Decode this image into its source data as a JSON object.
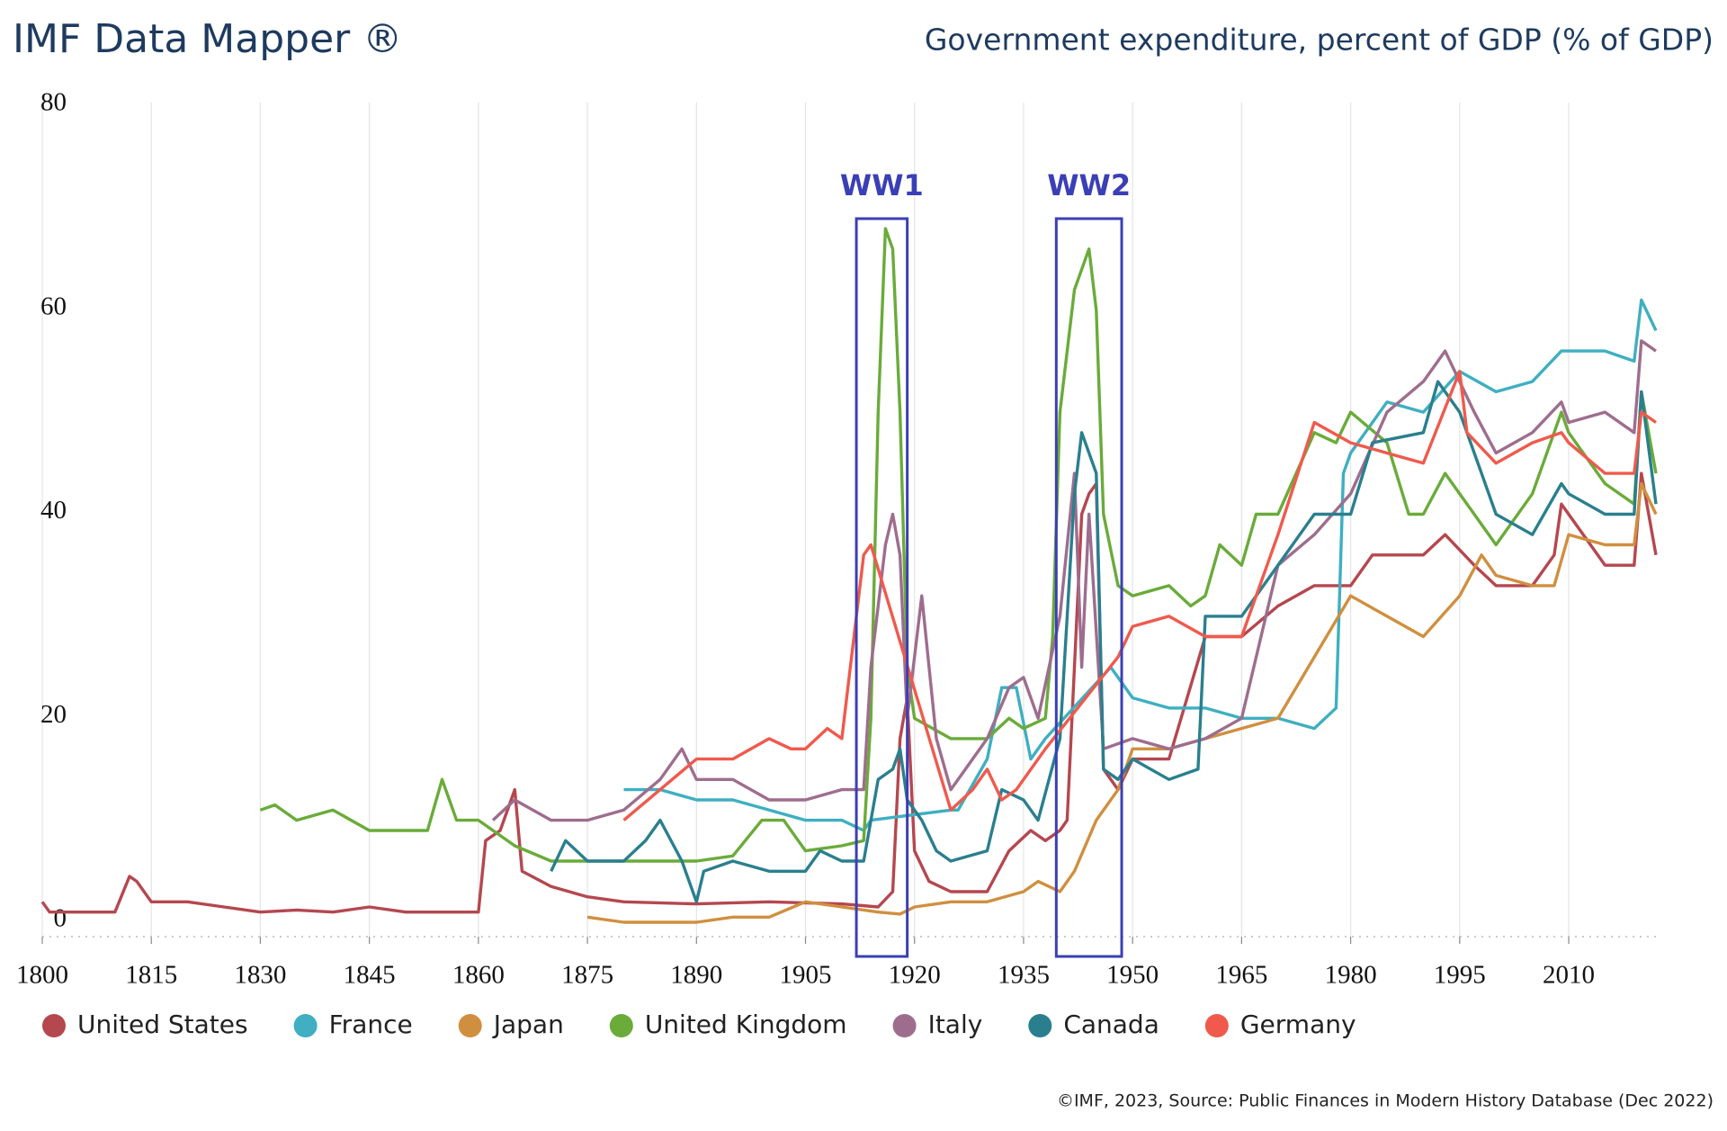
{
  "chart_data": {
    "type": "line",
    "title": "IMF Data Mapper ®",
    "subtitle": "Government expenditure, percent of GDP (% of GDP)",
    "source": "©IMF, 2023, Source: Public Finances in Modern History Database (Dec 2022)",
    "xlim": [
      1800,
      2022
    ],
    "xticks": [
      1800,
      1815,
      1830,
      1845,
      1860,
      1875,
      1890,
      1905,
      1920,
      1935,
      1950,
      1965,
      1980,
      1995,
      2010
    ],
    "ylim": [
      0,
      80
    ],
    "yticks": [
      0,
      20,
      40,
      60,
      80
    ],
    "grid": true,
    "legend": "bottom",
    "annotations": [
      {
        "text": "WW1",
        "x_range": [
          1912,
          1919
        ]
      },
      {
        "text": "WW2",
        "x_range": [
          1939.5,
          1948.5
        ]
      }
    ],
    "series": [
      {
        "name": "United States",
        "color": "#b5474f",
        "x": [
          1800,
          1801,
          1805,
          1810,
          1812,
          1813,
          1815,
          1820,
          1825,
          1830,
          1835,
          1840,
          1845,
          1850,
          1855,
          1860,
          1861,
          1863,
          1865,
          1866,
          1870,
          1875,
          1880,
          1890,
          1900,
          1910,
          1915,
          1917,
          1918,
          1919,
          1920,
          1922,
          1925,
          1930,
          1933,
          1936,
          1938,
          1940,
          1941,
          1942,
          1943,
          1944,
          1945,
          1946,
          1948,
          1950,
          1955,
          1960,
          1965,
          1970,
          1975,
          1980,
          1983,
          1990,
          1993,
          1997,
          2000,
          2005,
          2008,
          2009,
          2012,
          2015,
          2019,
          2020,
          2021,
          2022
        ],
        "values": [
          2,
          1,
          1,
          1,
          4.5,
          4,
          2,
          2,
          1.5,
          1,
          1.2,
          1,
          1.5,
          1,
          1,
          1,
          8,
          9,
          13,
          5,
          3.5,
          2.5,
          2,
          1.8,
          2,
          1.8,
          1.5,
          3,
          18,
          22,
          7,
          4,
          3,
          3,
          7,
          9,
          8,
          9,
          10,
          25,
          40,
          42,
          43,
          15,
          13,
          16,
          16,
          28,
          28,
          31,
          33,
          33,
          36,
          36,
          38,
          35,
          33,
          33,
          36,
          41,
          38,
          35,
          35,
          44,
          40,
          36
        ]
      },
      {
        "name": "France",
        "color": "#3fafc1",
        "x": [
          1880,
          1885,
          1890,
          1895,
          1900,
          1905,
          1910,
          1913,
          1914,
          1925,
          1926,
          1930,
          1932,
          1934,
          1936,
          1938,
          1947,
          1950,
          1955,
          1960,
          1965,
          1970,
          1975,
          1978,
          1979,
          1980,
          1985,
          1990,
          1995,
          2000,
          2005,
          2009,
          2010,
          2015,
          2019,
          2020,
          2022
        ],
        "values": [
          13,
          13,
          12,
          12,
          11,
          10,
          10,
          9,
          10,
          11,
          11,
          16,
          23,
          23,
          16,
          18,
          25,
          22,
          21,
          21,
          20,
          20,
          19,
          21,
          44,
          46,
          51,
          50,
          54,
          52,
          53,
          56,
          56,
          56,
          55,
          61,
          58
        ]
      },
      {
        "name": "Japan",
        "color": "#d08f3f",
        "x": [
          1875,
          1880,
          1890,
          1895,
          1900,
          1905,
          1910,
          1915,
          1918,
          1920,
          1925,
          1930,
          1935,
          1937,
          1940,
          1942,
          1945,
          1948,
          1950,
          1955,
          1960,
          1965,
          1970,
          1975,
          1980,
          1985,
          1990,
          1995,
          1998,
          2000,
          2005,
          2008,
          2010,
          2015,
          2019,
          2020,
          2022
        ],
        "values": [
          0.5,
          0,
          0,
          0.5,
          0.5,
          2,
          1.5,
          1,
          0.8,
          1.5,
          2,
          2,
          3,
          4,
          3,
          5,
          10,
          13,
          17,
          17,
          18,
          19,
          20,
          26,
          32,
          30,
          28,
          32,
          36,
          34,
          33,
          33,
          38,
          37,
          37,
          43,
          40
        ]
      },
      {
        "name": "United Kingdom",
        "color": "#6aab3a",
        "x": [
          1830,
          1832,
          1835,
          1840,
          1845,
          1850,
          1853,
          1855,
          1857,
          1860,
          1865,
          1870,
          1875,
          1880,
          1885,
          1890,
          1895,
          1899,
          1902,
          1905,
          1910,
          1913,
          1914,
          1915,
          1916,
          1917,
          1918,
          1919,
          1920,
          1925,
          1930,
          1933,
          1935,
          1938,
          1939,
          1940,
          1942,
          1944,
          1945,
          1946,
          1948,
          1950,
          1955,
          1958,
          1960,
          1962,
          1965,
          1967,
          1970,
          1975,
          1978,
          1980,
          1985,
          1988,
          1990,
          1993,
          1997,
          2000,
          2005,
          2009,
          2010,
          2015,
          2019,
          2020,
          2022
        ],
        "values": [
          11,
          11.5,
          10,
          11,
          9,
          9,
          9,
          14,
          10,
          10,
          7.5,
          6,
          6,
          6,
          6,
          6,
          6.5,
          10,
          10,
          7,
          7.5,
          8,
          20,
          50,
          68,
          66,
          50,
          25,
          20,
          18,
          18,
          20,
          19,
          20,
          28,
          50,
          62,
          66,
          60,
          40,
          33,
          32,
          33,
          31,
          32,
          37,
          35,
          40,
          40,
          48,
          47,
          50,
          47,
          40,
          40,
          44,
          40,
          37,
          42,
          50,
          48,
          43,
          41,
          52,
          44
        ]
      },
      {
        "name": "Italy",
        "color": "#9e6d8e",
        "x": [
          1862,
          1865,
          1870,
          1875,
          1880,
          1885,
          1888,
          1890,
          1895,
          1900,
          1905,
          1910,
          1913,
          1914,
          1916,
          1917,
          1918,
          1919,
          1921,
          1923,
          1925,
          1930,
          1933,
          1935,
          1937,
          1940,
          1942,
          1943,
          1944,
          1946,
          1950,
          1955,
          1960,
          1965,
          1970,
          1975,
          1980,
          1985,
          1990,
          1993,
          1997,
          2000,
          2005,
          2009,
          2010,
          2015,
          2019,
          2020,
          2022
        ],
        "values": [
          10,
          12,
          10,
          10,
          11,
          14,
          17,
          14,
          14,
          12,
          12,
          13,
          13,
          25,
          37,
          40,
          36,
          20,
          32,
          18,
          13,
          18,
          23,
          24,
          20,
          30,
          44,
          25,
          40,
          17,
          18,
          17,
          18,
          20,
          35,
          38,
          42,
          50,
          53,
          56,
          50,
          46,
          48,
          51,
          49,
          50,
          48,
          57,
          56
        ]
      },
      {
        "name": "Canada",
        "color": "#2a7f8e",
        "x": [
          1870,
          1872,
          1875,
          1880,
          1883,
          1885,
          1888,
          1890,
          1891,
          1895,
          1900,
          1905,
          1907,
          1910,
          1913,
          1915,
          1917,
          1918,
          1919,
          1921,
          1923,
          1925,
          1930,
          1932,
          1935,
          1937,
          1940,
          1942,
          1943,
          1945,
          1946,
          1948,
          1950,
          1955,
          1959,
          1960,
          1965,
          1970,
          1975,
          1980,
          1983,
          1990,
          1992,
          1995,
          1998,
          2000,
          2005,
          2009,
          2010,
          2015,
          2019,
          2020,
          2022
        ],
        "values": [
          5,
          8,
          6,
          6,
          8,
          10,
          6,
          2,
          5,
          6,
          5,
          5,
          7,
          6,
          6,
          14,
          15,
          17,
          12,
          10,
          7,
          6,
          7,
          13,
          12,
          10,
          18,
          42,
          48,
          44,
          15,
          14,
          16,
          14,
          15,
          30,
          30,
          35,
          40,
          40,
          47,
          48,
          53,
          50,
          44,
          40,
          38,
          43,
          42,
          40,
          40,
          52,
          41
        ]
      },
      {
        "name": "Germany",
        "color": "#ef5a4d",
        "x": [
          1880,
          1885,
          1890,
          1895,
          1900,
          1903,
          1905,
          1908,
          1910,
          1913,
          1914,
          1925,
          1928,
          1930,
          1932,
          1934,
          1938,
          1948,
          1950,
          1955,
          1960,
          1965,
          1970,
          1975,
          1980,
          1985,
          1990,
          1995,
          1996,
          2000,
          2005,
          2009,
          2010,
          2015,
          2019,
          2020,
          2022
        ],
        "values": [
          10,
          13,
          16,
          16,
          18,
          17,
          17,
          19,
          18,
          36,
          37,
          11,
          13,
          15,
          12,
          13,
          17,
          26,
          29,
          30,
          28,
          28,
          38,
          49,
          47,
          46,
          45,
          54,
          48,
          45,
          47,
          48,
          47,
          44,
          44,
          50,
          49
        ]
      }
    ]
  }
}
